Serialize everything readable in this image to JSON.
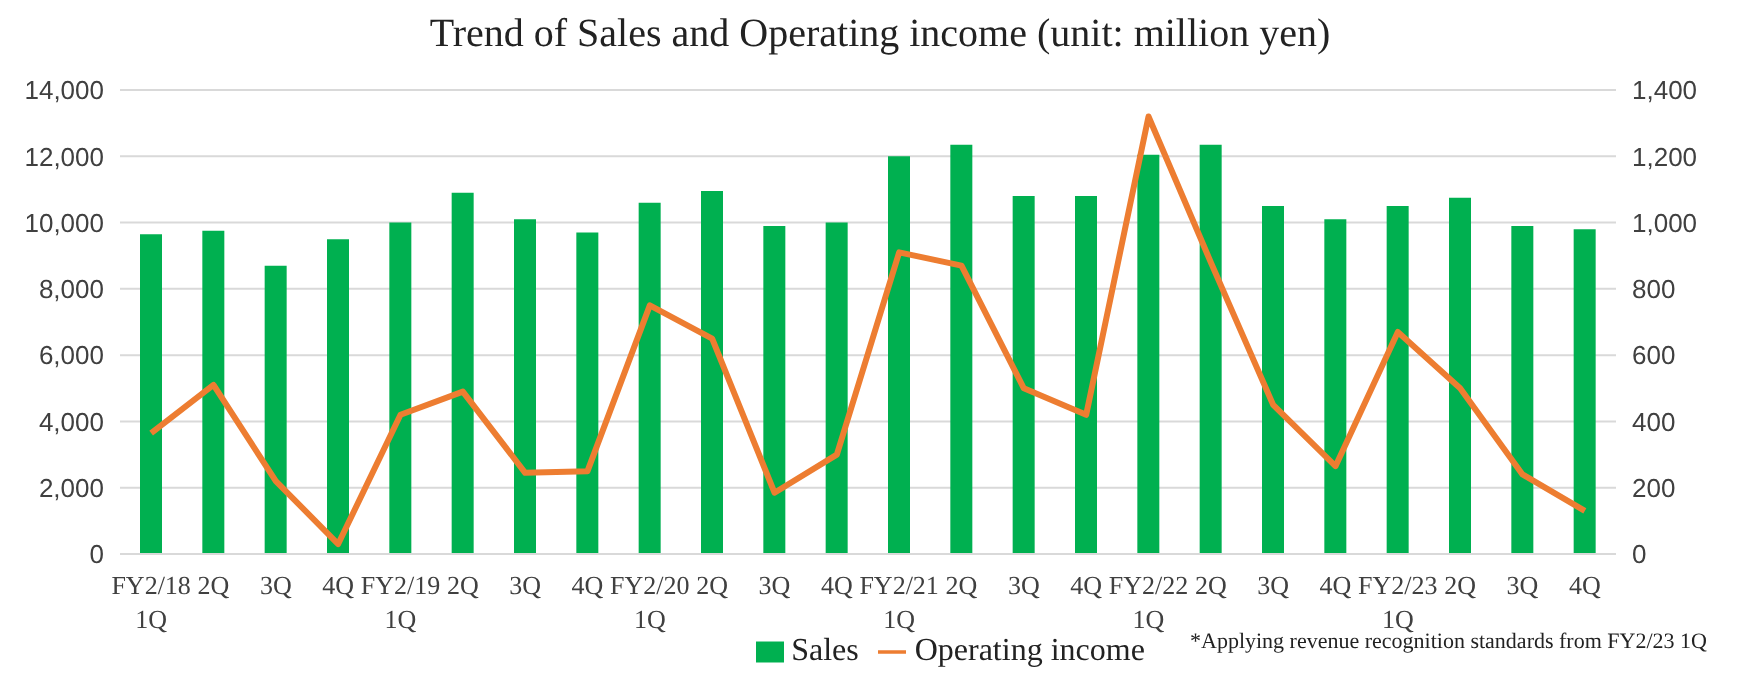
{
  "chart_data": {
    "type": "bar",
    "title": "Trend of Sales and Operating income (unit: million yen)",
    "categories": [
      "FY2/18 1Q",
      "2Q",
      "3Q",
      "4Q",
      "FY2/19 1Q",
      "2Q",
      "3Q",
      "4Q",
      "FY2/20 1Q",
      "2Q",
      "3Q",
      "4Q",
      "FY2/21 1Q",
      "2Q",
      "3Q",
      "4Q",
      "FY2/22 1Q",
      "2Q",
      "3Q",
      "4Q",
      "FY2/23 1Q",
      "2Q",
      "3Q",
      "4Q"
    ],
    "series": [
      {
        "name": "Sales",
        "color": "#00b050",
        "values": [
          9650,
          9750,
          8700,
          9500,
          10000,
          10900,
          10100,
          9700,
          10600,
          10950,
          9900,
          10000,
          12000,
          12350,
          10800,
          10800,
          12050,
          12350,
          10500,
          10100,
          10500,
          10750,
          9900,
          9800
        ]
      },
      {
        "name": "Operating income",
        "type": "line",
        "axis": "y2",
        "color": "#ed7d31",
        "values": [
          365,
          510,
          220,
          30,
          420,
          490,
          245,
          250,
          750,
          650,
          185,
          300,
          910,
          870,
          500,
          420,
          1320,
          880,
          450,
          265,
          670,
          500,
          240,
          130
        ]
      }
    ],
    "ylim": [
      0,
      14000
    ],
    "yticks": [
      {
        "value": 0,
        "label": "0"
      },
      {
        "value": 2000,
        "label": "2,000"
      },
      {
        "value": 4000,
        "label": "4,000"
      },
      {
        "value": 6000,
        "label": "6,000"
      },
      {
        "value": 8000,
        "label": "8,000"
      },
      {
        "value": 10000,
        "label": "10,000"
      },
      {
        "value": 12000,
        "label": "12,000"
      },
      {
        "value": 14000,
        "label": "14,000"
      }
    ],
    "y2lim": [
      0,
      1400
    ],
    "y2ticks": [
      {
        "value": 0,
        "label": "0"
      },
      {
        "value": 200,
        "label": "200"
      },
      {
        "value": 400,
        "label": "400"
      },
      {
        "value": 600,
        "label": "600"
      },
      {
        "value": 800,
        "label": "800"
      },
      {
        "value": 1000,
        "label": "1,000"
      },
      {
        "value": 1200,
        "label": "1,200"
      },
      {
        "value": 1400,
        "label": "1,400"
      }
    ],
    "grid": "y",
    "legend": "bottom",
    "marker": "none",
    "line_style": "solid",
    "annotations": [
      "*Applying revenue recognition standards from FY2/23 1Q"
    ]
  }
}
